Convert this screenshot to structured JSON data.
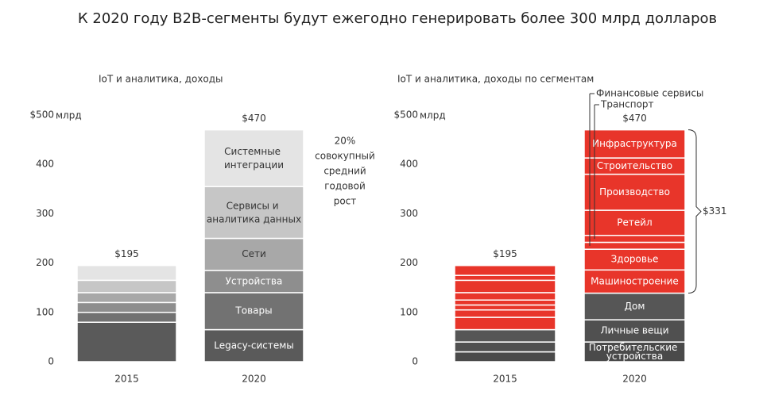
{
  "title": "К 2020 году B2B-сегменты будут ежегодно генерировать более 300 млрд долларов",
  "chart_data": [
    {
      "type": "bar",
      "stacked": true,
      "subtitle": "IoT и аналитика, доходы",
      "categories": [
        "2015",
        "2020"
      ],
      "ylim": [
        0,
        500
      ],
      "yticks": [
        0,
        100,
        200,
        300,
        400,
        {
          "value": 500,
          "label": "$500"
        }
      ],
      "y_unit": "млрд",
      "series": [
        {
          "name": "Legacy-системы",
          "color": "#5a5a5a",
          "values": [
            80,
            65
          ]
        },
        {
          "name": "Товары",
          "color": "#727272",
          "values": [
            20,
            75
          ]
        },
        {
          "name": "Устройства",
          "color": "#8e8e8e",
          "values": [
            20,
            45
          ]
        },
        {
          "name": "Сети",
          "color": "#a8a8a8",
          "values": [
            20,
            65
          ]
        },
        {
          "name": "Сервисы и аналитика данных",
          "color": "#c6c6c6",
          "values": [
            25,
            105
          ]
        },
        {
          "name": "Системные интеграции",
          "color": "#e4e4e4",
          "values": [
            30,
            115
          ]
        }
      ],
      "totals": [
        195,
        470
      ],
      "total_labels": [
        "$195",
        "$470"
      ],
      "annotation": [
        "20%",
        "совокупный",
        "средний",
        "годовой",
        "рост"
      ]
    },
    {
      "type": "bar",
      "stacked": true,
      "subtitle": "IoT и аналитика, доходы по сегментам",
      "categories": [
        "2015",
        "2020"
      ],
      "ylim": [
        0,
        500
      ],
      "yticks": [
        0,
        100,
        200,
        300,
        400,
        {
          "value": 500,
          "label": "$500"
        }
      ],
      "y_unit": "млрд",
      "series": [
        {
          "name": "Потребительские устройства",
          "color": "#4a4a4a",
          "values": [
            20,
            40
          ]
        },
        {
          "name": "Личные вещи",
          "color": "#505050",
          "values": [
            20,
            45
          ]
        },
        {
          "name": "Дом",
          "color": "#565656",
          "values": [
            25,
            54
          ]
        },
        {
          "name": "Машиностроение",
          "color": "#e8352a",
          "values": [
            25,
            47
          ]
        },
        {
          "name": "Здоровье",
          "color": "#e8352a",
          "values": [
            15,
            42
          ]
        },
        {
          "name": "Финансовые сервисы",
          "color": "#e8352a",
          "values": [
            10,
            14
          ],
          "label_position": "callout"
        },
        {
          "name": "Транспорт",
          "color": "#e8352a",
          "values": [
            10,
            14
          ],
          "label_position": "callout"
        },
        {
          "name": "Ретейл",
          "color": "#e8352a",
          "values": [
            15,
            51
          ]
        },
        {
          "name": "Производство",
          "color": "#e8352a",
          "values": [
            25,
            73
          ]
        },
        {
          "name": "Строительство",
          "color": "#e8352a",
          "values": [
            10,
            33
          ]
        },
        {
          "name": "Инфраструктура",
          "color": "#e8352a",
          "values": [
            20,
            57
          ]
        }
      ],
      "totals": [
        195,
        470
      ],
      "total_labels": [
        "$195",
        "$470"
      ],
      "bracket": {
        "value": 331,
        "label": "$331"
      }
    }
  ]
}
